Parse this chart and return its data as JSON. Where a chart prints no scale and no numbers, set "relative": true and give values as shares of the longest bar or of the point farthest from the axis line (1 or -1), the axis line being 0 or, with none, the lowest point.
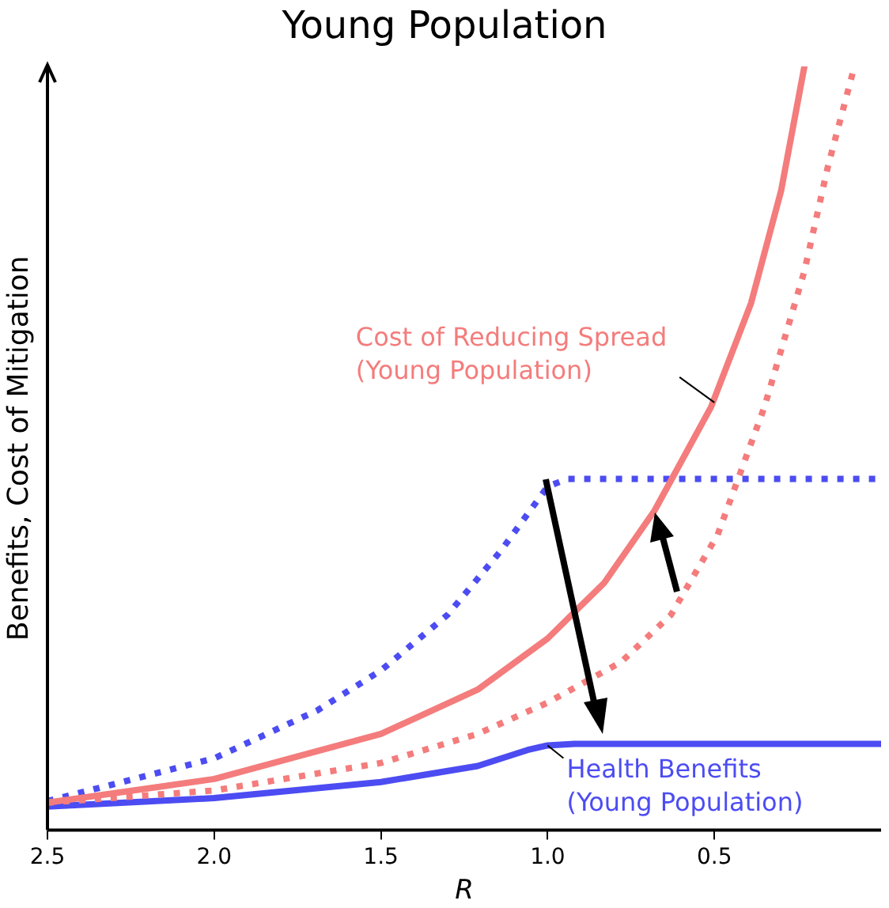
{
  "chart_data": {
    "type": "line",
    "title": "Young Population",
    "xlabel": "R",
    "ylabel": "Benefits, Cost of Mitigation",
    "relative": true,
    "xlim": [
      2.5,
      0
    ],
    "xticks": [
      {
        "value": 2.5,
        "label": "2.5"
      },
      {
        "value": 2,
        "label": "2.0"
      },
      {
        "value": 1.5,
        "label": "1.5"
      },
      {
        "value": 1,
        "label": "1.0"
      },
      {
        "value": 0.5,
        "label": "0.5"
      }
    ],
    "grid": false,
    "legend": false,
    "marker": "none",
    "series": [
      {
        "color": "#f47c7c",
        "line_style": "solid",
        "x": [
          2.5,
          2.0,
          1.5,
          1.21,
          1.0,
          0.83,
          0.68,
          0.51,
          0.39,
          0.3,
          0.23
        ],
        "values": [
          0.036,
          0.067,
          0.126,
          0.184,
          0.251,
          0.324,
          0.418,
          0.554,
          0.69,
          0.837,
          1.0
        ]
      },
      {
        "color": "#f47c7c",
        "line_style": "dotted",
        "x": [
          2.5,
          2.0,
          1.5,
          1.21,
          1.0,
          0.78,
          0.63,
          0.49,
          0.35,
          0.23,
          0.16,
          0.08
        ],
        "values": [
          0.036,
          0.052,
          0.088,
          0.126,
          0.167,
          0.22,
          0.282,
          0.387,
          0.554,
          0.732,
          0.868,
          1.0
        ]
      },
      {
        "color": "#4c4cf2",
        "line_style": "dotted",
        "x": [
          2.5,
          2.0,
          1.69,
          1.5,
          1.3,
          1.14,
          1.0,
          0.94,
          0.0
        ],
        "values": [
          0.038,
          0.094,
          0.157,
          0.209,
          0.282,
          0.366,
          0.45,
          0.46,
          0.46
        ]
      },
      {
        "color": "#4c4cf2",
        "line_style": "solid",
        "x": [
          2.5,
          2.0,
          1.5,
          1.21,
          1.06,
          1.0,
          0.92,
          0.0
        ],
        "values": [
          0.031,
          0.042,
          0.063,
          0.084,
          0.105,
          0.111,
          0.113,
          0.113
        ]
      }
    ],
    "annotations": [
      {
        "text": "Cost of Reducing Spread\n(Young Population)",
        "x": 0.5,
        "y": 0.56
      },
      {
        "text": "Health Benefits\n(Young Population)",
        "x": 1.0,
        "y": 0.111
      }
    ]
  }
}
